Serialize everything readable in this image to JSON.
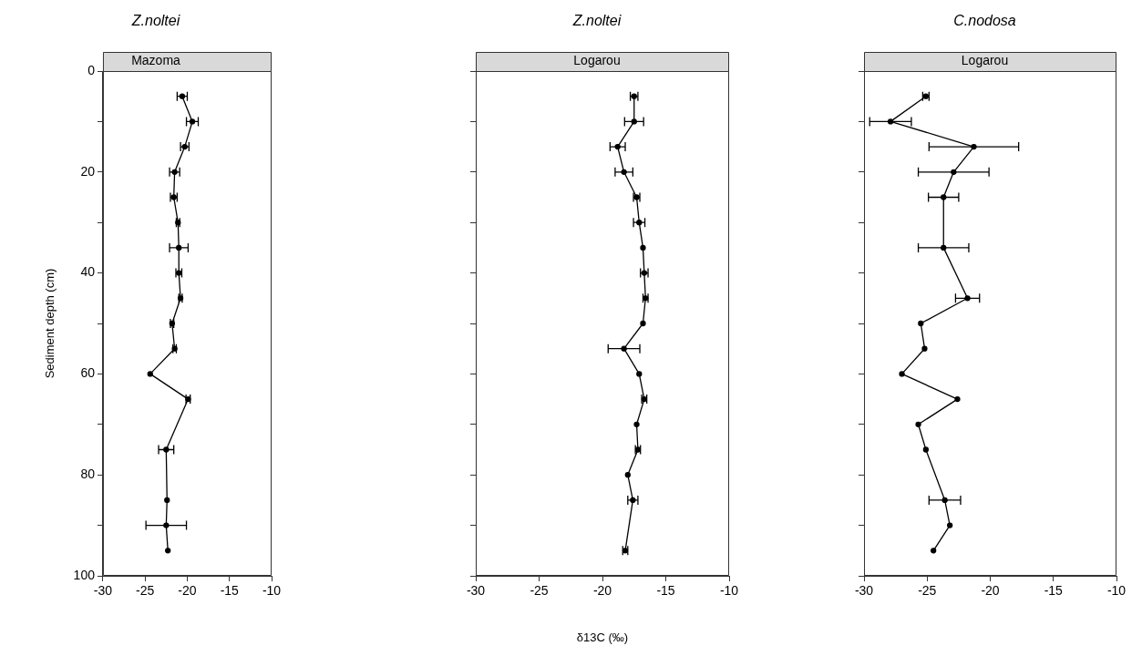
{
  "chart_data": [
    {
      "type": "line",
      "title": "Z.noltei",
      "subtitle": "Mazoma",
      "ylabel": "Sediment depth (cm)",
      "marker": "circle",
      "xlim": [
        -30,
        -10
      ],
      "xticks": [
        -30,
        -25,
        -20,
        -15,
        -10
      ],
      "ylim": [
        100,
        0
      ],
      "yticks": [
        0,
        {
          "value": 10,
          "label": null
        },
        20,
        {
          "value": 30,
          "label": null
        },
        40,
        {
          "value": 50,
          "label": null
        },
        60,
        {
          "value": 70,
          "label": null
        },
        80,
        {
          "value": 90,
          "label": null
        },
        100
      ],
      "series": [
        {
          "color": "#000000",
          "x": [
            -20.6,
            -19.4,
            -20.3,
            -21.5,
            -21.6,
            -21.1,
            -21.0,
            -21.0,
            -20.8,
            -21.8,
            -21.5,
            -24.4,
            -19.9,
            -22.5,
            -22.4,
            -22.5,
            -22.3
          ],
          "values": [
            5,
            10,
            15,
            20,
            25,
            30,
            35,
            40,
            45,
            50,
            55,
            60,
            65,
            75,
            85,
            90,
            95
          ],
          "xerrors": [
            0.6,
            0.7,
            0.5,
            0.6,
            0.4,
            0.2,
            1.1,
            0.35,
            0.2,
            0.2,
            0.2,
            null,
            0.25,
            0.9,
            null,
            2.4,
            null
          ]
        }
      ]
    },
    {
      "type": "line",
      "title": "Z.noltei",
      "subtitle": "Logarou",
      "xlabel": "δ13C (‰)",
      "marker": "circle",
      "tick_labels": "x",
      "xlim": [
        -30,
        -10
      ],
      "xticks": [
        -30,
        -25,
        -20,
        -15,
        -10
      ],
      "ylim": [
        100,
        0
      ],
      "yticks": [
        0,
        {
          "value": 10,
          "label": null
        },
        20,
        {
          "value": 30,
          "label": null
        },
        40,
        {
          "value": 50,
          "label": null
        },
        60,
        {
          "value": 70,
          "label": null
        },
        80,
        {
          "value": 90,
          "label": null
        },
        100
      ],
      "series": [
        {
          "color": "#000000",
          "x": [
            -17.5,
            -17.5,
            -18.8,
            -18.3,
            -17.3,
            -17.1,
            -16.8,
            -16.7,
            -16.6,
            -16.8,
            -18.3,
            -17.1,
            -16.7,
            -17.3,
            -17.2,
            -18.0,
            -17.6,
            -18.2
          ],
          "values": [
            5,
            10,
            15,
            20,
            25,
            30,
            35,
            40,
            45,
            50,
            55,
            60,
            65,
            70,
            75,
            80,
            85,
            95
          ],
          "xerrors": [
            0.3,
            0.75,
            0.6,
            0.7,
            0.25,
            0.45,
            null,
            0.3,
            0.2,
            null,
            1.25,
            null,
            0.2,
            null,
            0.2,
            null,
            0.4,
            0.2
          ]
        }
      ]
    },
    {
      "type": "line",
      "title": "C.nodosa",
      "subtitle": "Logarou",
      "marker": "circle",
      "tick_labels": "x",
      "xlim": [
        -30,
        -10
      ],
      "xticks": [
        -30,
        -25,
        -20,
        -15,
        -10
      ],
      "ylim": [
        100,
        0
      ],
      "yticks": [
        0,
        {
          "value": 10,
          "label": null
        },
        20,
        {
          "value": 30,
          "label": null
        },
        40,
        {
          "value": 50,
          "label": null
        },
        60,
        {
          "value": 70,
          "label": null
        },
        80,
        {
          "value": 90,
          "label": null
        },
        100
      ],
      "series": [
        {
          "color": "#000000",
          "x": [
            -25.1,
            -27.9,
            -21.3,
            -22.9,
            -23.7,
            -23.7,
            -21.8,
            -25.5,
            -25.2,
            -27.0,
            -22.6,
            -25.7,
            -25.1,
            -23.6,
            -23.2,
            -24.5
          ],
          "values": [
            5,
            10,
            15,
            20,
            25,
            35,
            45,
            50,
            55,
            60,
            65,
            70,
            75,
            85,
            90,
            95
          ],
          "xerrors": [
            0.25,
            1.65,
            3.55,
            2.8,
            1.2,
            2.0,
            0.95,
            null,
            null,
            null,
            null,
            null,
            null,
            1.25,
            null,
            null
          ]
        }
      ]
    }
  ]
}
